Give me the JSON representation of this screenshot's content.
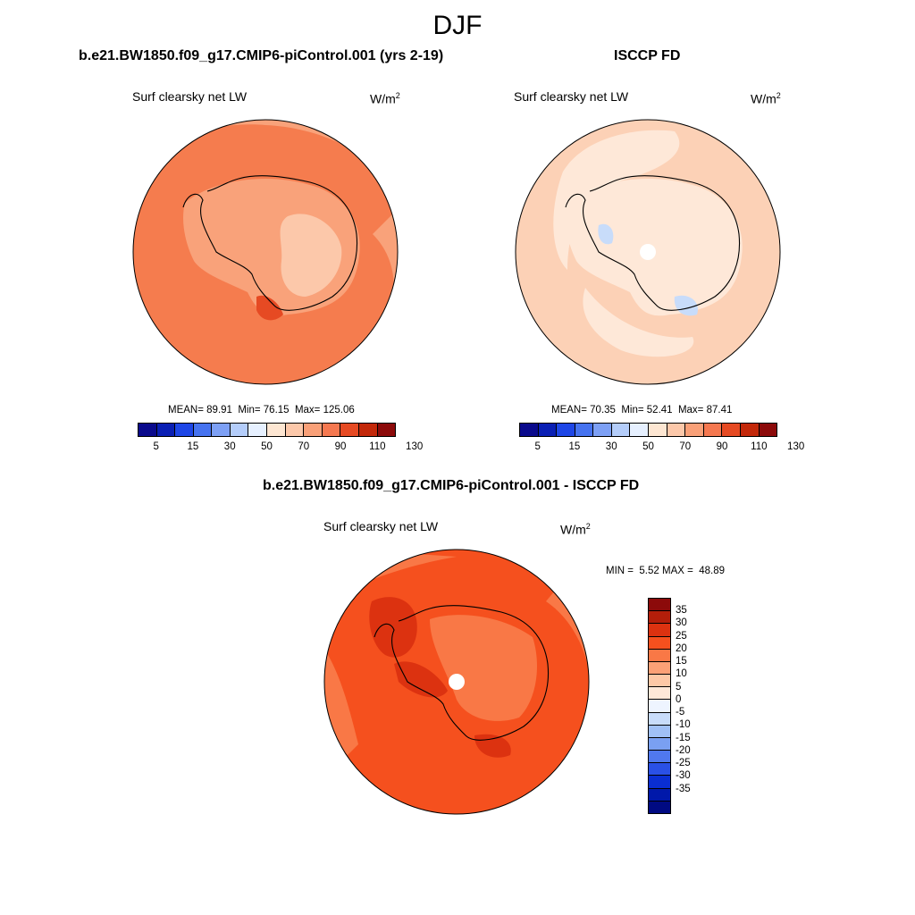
{
  "season": "DJF",
  "panels": [
    {
      "title": "b.e21.BW1850.f09_g17.CMIP6-piControl.001 (yrs 2-19)",
      "variable": "Surf clearsky net LW",
      "units_base": "W/m",
      "units_exp": "2",
      "stats": {
        "mean_label": "MEAN=",
        "mean": "89.91",
        "min_label": "Min=",
        "min": "76.15",
        "max_label": "Max=",
        "max": "125.06"
      }
    },
    {
      "title": "ISCCP FD",
      "variable": "Surf clearsky net LW",
      "units_base": "W/m",
      "units_exp": "2",
      "stats": {
        "mean_label": "MEAN=",
        "mean": "70.35",
        "min_label": "Min=",
        "min": "52.41",
        "max_label": "Max=",
        "max": "87.41"
      }
    }
  ],
  "abs_colorbar": {
    "colors": [
      "#0a0a8c",
      "#0a1fb4",
      "#1e46e6",
      "#4673f0",
      "#7da0f5",
      "#b4cdfa",
      "#e6f0ff",
      "#fde6d2",
      "#fcc8aa",
      "#f9a078",
      "#f57850",
      "#e64a23",
      "#c3280a",
      "#8c0a0a"
    ],
    "tick_labels": [
      "5",
      "15",
      "30",
      "50",
      "70",
      "90",
      "110",
      "130"
    ]
  },
  "diff_panel": {
    "title": "b.e21.BW1850.f09_g17.CMIP6-piControl.001 - ISCCP FD",
    "variable": "Surf clearsky net LW",
    "units_base": "W/m",
    "units_exp": "2",
    "minmax": {
      "min_label": "MIN =",
      "min": "5.52",
      "max_label": "MAX =",
      "max": "48.89"
    }
  },
  "diff_colorbar": {
    "colors": [
      "#8c0a0a",
      "#b41e0a",
      "#dc3210",
      "#f5501e",
      "#f97846",
      "#fba076",
      "#fdc8a6",
      "#fee8d8",
      "#eef4ff",
      "#c8dcfa",
      "#a0c0f6",
      "#7aa0f2",
      "#5078ee",
      "#2a50e6",
      "#0a2ed2",
      "#0018aa",
      "#000a82"
    ],
    "tick_labels": [
      "35",
      "30",
      "25",
      "20",
      "15",
      "10",
      "5",
      "0",
      "-5",
      "-10",
      "-15",
      "-20",
      "-25",
      "-30",
      "-35"
    ]
  }
}
